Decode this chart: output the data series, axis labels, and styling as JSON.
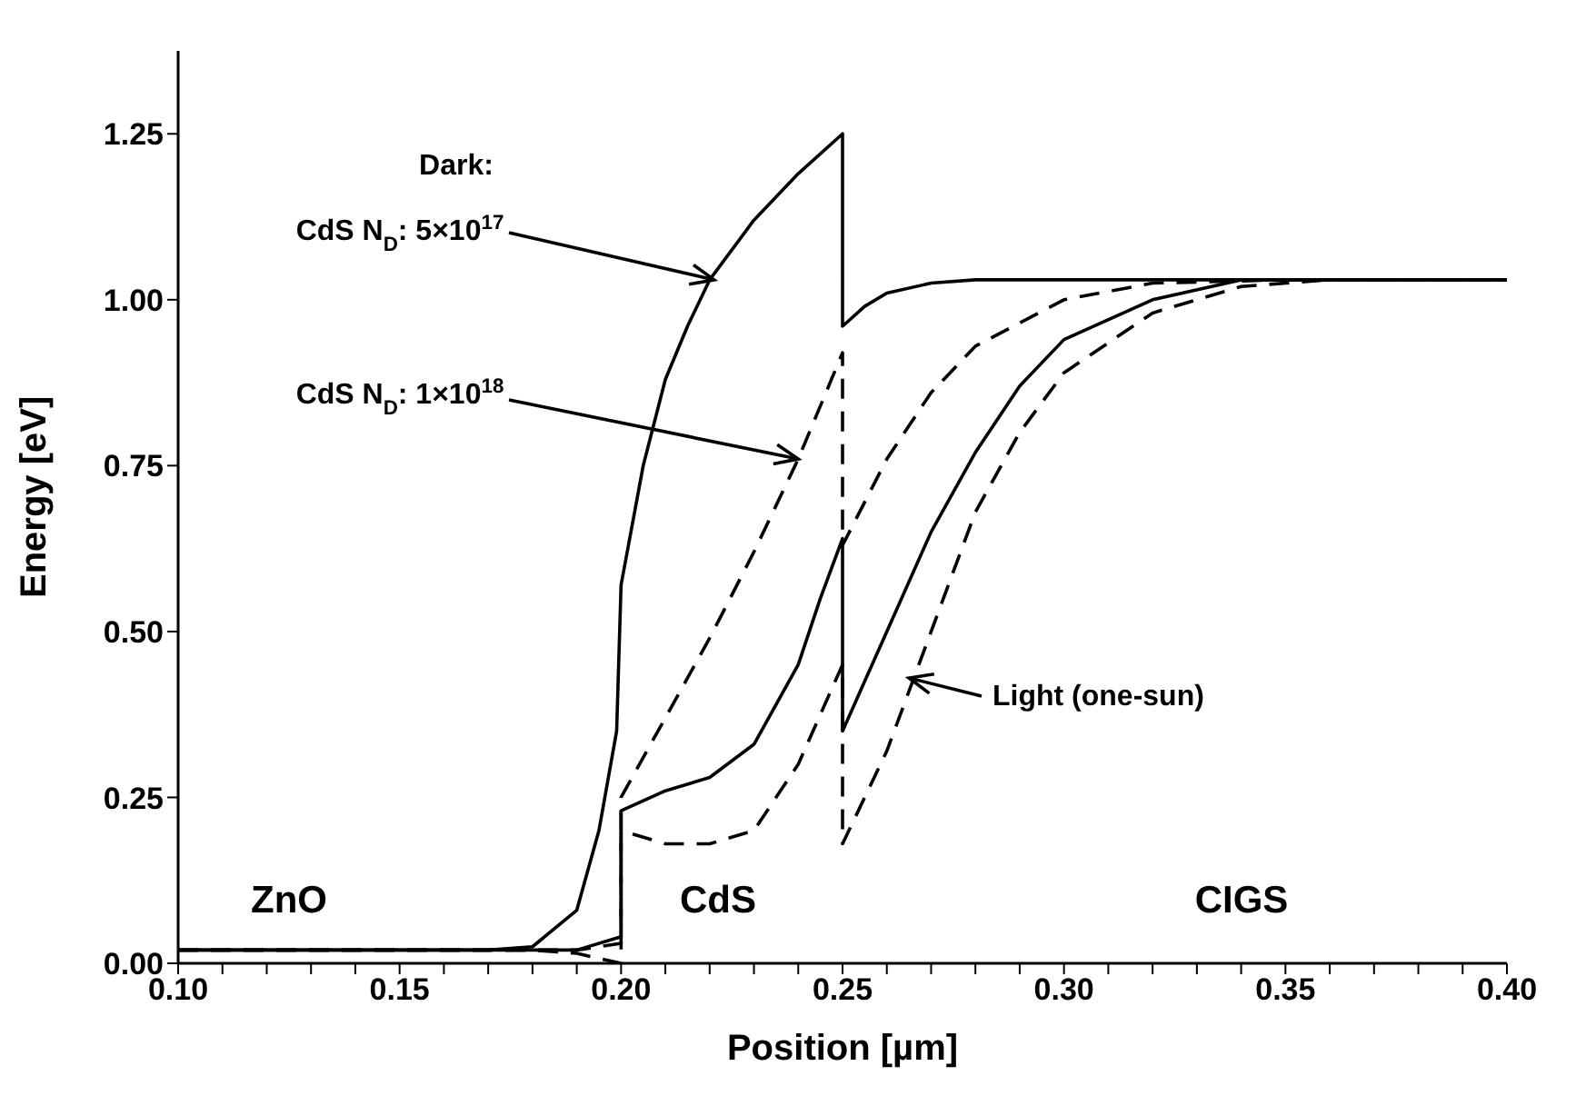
{
  "chart_data": {
    "type": "line",
    "xlabel": "Position [µm]",
    "ylabel": "Energy [eV]",
    "xlim": [
      0.1,
      0.4
    ],
    "ylim": [
      0,
      1.375
    ],
    "xticks": [
      {
        "value": 0.1,
        "label": "0.10"
      },
      {
        "value": 0.11,
        "label": null
      },
      {
        "value": 0.12,
        "label": null
      },
      {
        "value": 0.13,
        "label": null
      },
      {
        "value": 0.14,
        "label": null
      },
      {
        "value": 0.15,
        "label": "0.15"
      },
      {
        "value": 0.16,
        "label": null
      },
      {
        "value": 0.17,
        "label": null
      },
      {
        "value": 0.18,
        "label": null
      },
      {
        "value": 0.19,
        "label": null
      },
      {
        "value": 0.2,
        "label": "0.20"
      },
      {
        "value": 0.21,
        "label": null
      },
      {
        "value": 0.22,
        "label": null
      },
      {
        "value": 0.23,
        "label": null
      },
      {
        "value": 0.24,
        "label": null
      },
      {
        "value": 0.25,
        "label": "0.25"
      },
      {
        "value": 0.26,
        "label": null
      },
      {
        "value": 0.27,
        "label": null
      },
      {
        "value": 0.28,
        "label": null
      },
      {
        "value": 0.29,
        "label": null
      },
      {
        "value": 0.3,
        "label": "0.30"
      },
      {
        "value": 0.31,
        "label": null
      },
      {
        "value": 0.32,
        "label": null
      },
      {
        "value": 0.33,
        "label": null
      },
      {
        "value": 0.34,
        "label": null
      },
      {
        "value": 0.35,
        "label": "0.35"
      },
      {
        "value": 0.36,
        "label": null
      },
      {
        "value": 0.37,
        "label": null
      },
      {
        "value": 0.38,
        "label": null
      },
      {
        "value": 0.39,
        "label": null
      },
      {
        "value": 0.4,
        "label": "0.40"
      }
    ],
    "yticks": [
      {
        "value": 0,
        "label": "0.00"
      },
      {
        "value": 0.25,
        "label": "0.25"
      },
      {
        "value": 0.5,
        "label": "0.50"
      },
      {
        "value": 0.75,
        "label": "0.75"
      },
      {
        "value": 1,
        "label": "1.00"
      },
      {
        "value": 1.25,
        "label": "1.25"
      }
    ],
    "marker": "none",
    "series": [
      {
        "color": "#000000",
        "line_style": "solid",
        "x": [
          0.1,
          0.17,
          0.18,
          0.19,
          0.195,
          0.199,
          0.2,
          0.205,
          0.21,
          0.215,
          0.22,
          0.23,
          0.24,
          0.25,
          0.25,
          0.255,
          0.26,
          0.27,
          0.28,
          0.3,
          0.4
        ],
        "values": [
          0.02,
          0.02,
          0.025,
          0.08,
          0.2,
          0.35,
          0.57,
          0.75,
          0.88,
          0.96,
          1.03,
          1.12,
          1.19,
          1.25,
          0.96,
          0.99,
          1.01,
          1.025,
          1.03,
          1.03,
          1.03
        ]
      },
      {
        "color": "#000000",
        "line_style": "dashed",
        "x": [
          0.1,
          0.18,
          0.19,
          0.2,
          0.2,
          0.21,
          0.22,
          0.23,
          0.24,
          0.25,
          0.25,
          0.26,
          0.27,
          0.28,
          0.3,
          0.32,
          0.35,
          0.4
        ],
        "values": [
          0.02,
          0.02,
          0.02,
          0.03,
          0.25,
          0.37,
          0.49,
          0.62,
          0.76,
          0.92,
          0.63,
          0.76,
          0.86,
          0.93,
          1.0,
          1.025,
          1.03,
          1.03
        ]
      },
      {
        "color": "#000000",
        "line_style": "solid",
        "x": [
          0.1,
          0.18,
          0.19,
          0.2,
          0.2,
          0.21,
          0.22,
          0.23,
          0.24,
          0.245,
          0.25,
          0.25,
          0.26,
          0.27,
          0.28,
          0.29,
          0.3,
          0.32,
          0.34,
          0.4
        ],
        "values": [
          0.02,
          0.02,
          0.02,
          0.04,
          0.23,
          0.26,
          0.28,
          0.33,
          0.45,
          0.55,
          0.64,
          0.35,
          0.5,
          0.65,
          0.77,
          0.87,
          0.94,
          1.0,
          1.03,
          1.03
        ]
      },
      {
        "color": "#000000",
        "line_style": "dashed",
        "x": [
          0.1,
          0.18,
          0.19,
          0.2,
          0.2,
          0.21,
          0.22,
          0.23,
          0.24,
          0.25,
          0.25,
          0.26,
          0.27,
          0.28,
          0.29,
          0.3,
          0.32,
          0.34,
          0.36,
          0.4
        ],
        "values": [
          0.02,
          0.02,
          0.015,
          0.0,
          0.2,
          0.18,
          0.18,
          0.2,
          0.3,
          0.45,
          0.18,
          0.32,
          0.5,
          0.68,
          0.8,
          0.89,
          0.98,
          1.02,
          1.03,
          1.03
        ]
      }
    ],
    "annotations": [
      "Dark:",
      {
        "text": "CdS N$_{D}$: 5×10$^{17}$",
        "x": 0.221,
        "y": 1.03
      },
      {
        "text": "CdS N$_{D}$: 1×10$^{18}$",
        "x": 0.24,
        "y": 0.76
      },
      {
        "text": "Light (one-sun)",
        "x": 0.265,
        "y": 0.43
      },
      "ZnO",
      "CdS",
      "CIGS"
    ]
  }
}
